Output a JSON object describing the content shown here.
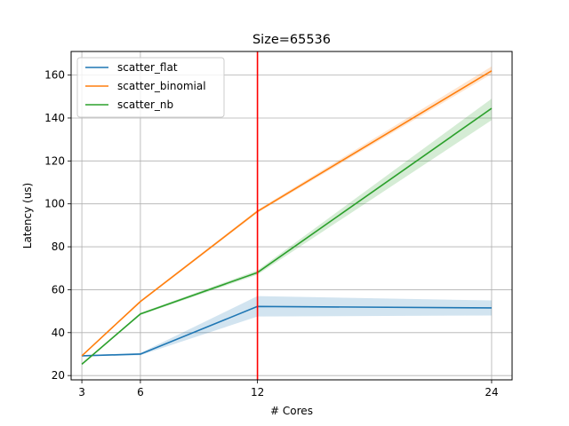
{
  "chart_data": {
    "type": "line",
    "title": "Size=65536",
    "xlabel": "# Cores",
    "ylabel": "Latency (us)",
    "x": [
      3,
      6,
      12,
      24
    ],
    "xticks": [
      3,
      6,
      12,
      24
    ],
    "yticks": [
      20,
      40,
      60,
      80,
      100,
      120,
      140,
      160
    ],
    "xlim": [
      2.45,
      25.05
    ],
    "ylim": [
      18.0,
      171.0
    ],
    "grid": true,
    "legend_position": "top-left",
    "vline": {
      "x": 12,
      "color": "#ff0000"
    },
    "series": [
      {
        "name": "scatter_flat",
        "color": "#1f77b4",
        "values": [
          29.2,
          30.0,
          52.2,
          51.5
        ],
        "lower": [
          29.0,
          29.5,
          47.5,
          48.0
        ],
        "upper": [
          29.5,
          30.5,
          57.0,
          55.0
        ]
      },
      {
        "name": "scatter_binomial",
        "color": "#ff7f0e",
        "values": [
          29.2,
          54.5,
          96.5,
          162.0
        ],
        "lower": [
          29.0,
          54.0,
          95.8,
          160.5
        ],
        "upper": [
          29.5,
          55.0,
          97.2,
          164.0
        ]
      },
      {
        "name": "scatter_nb",
        "color": "#2ca02c",
        "values": [
          25.3,
          48.7,
          68.0,
          144.5
        ],
        "lower": [
          25.0,
          48.2,
          67.0,
          139.0
        ],
        "upper": [
          25.6,
          49.2,
          69.0,
          149.0
        ]
      }
    ]
  }
}
